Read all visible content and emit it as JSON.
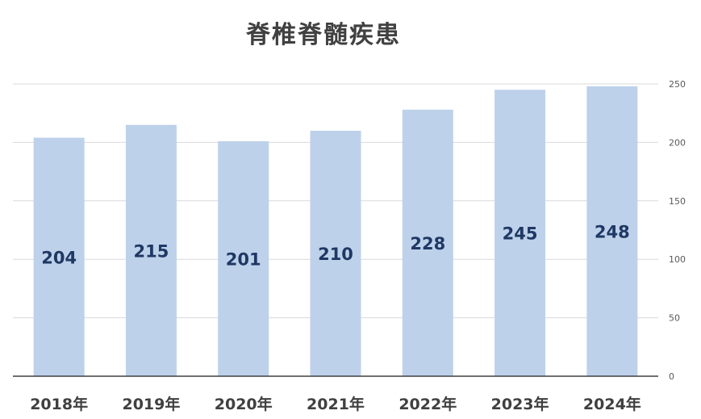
{
  "chart_data": {
    "type": "bar",
    "title": "脊椎脊髄疾患",
    "categories": [
      "2018年",
      "2019年",
      "2020年",
      "2021年",
      "2022年",
      "2023年",
      "2024年"
    ],
    "values": [
      204,
      215,
      201,
      210,
      228,
      245,
      248
    ],
    "data_labels": [
      "204",
      "215",
      "201",
      "210",
      "228",
      "245",
      "248"
    ],
    "ylim": [
      0,
      250
    ],
    "yticks": [
      0,
      50,
      100,
      150,
      200,
      250
    ],
    "y_axis_side": "right",
    "grid": true,
    "legend": "none",
    "colors": {
      "bar": "#bdd1ea",
      "grid": "#d9d9d9",
      "axis": "#404040",
      "data_label": "#1f3864"
    }
  }
}
